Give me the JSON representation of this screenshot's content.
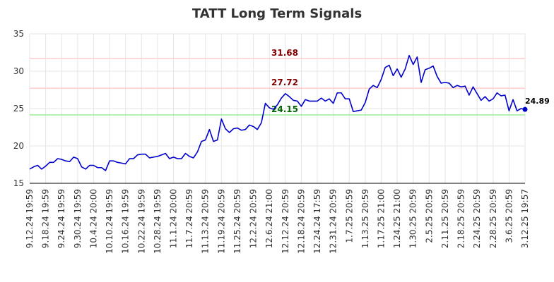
{
  "chart_data": {
    "type": "line",
    "title": "TATT Long Term Signals",
    "xlabel": "",
    "ylabel": "",
    "ylim": [
      15,
      35
    ],
    "y_ticks": [
      15,
      20,
      25,
      30,
      35
    ],
    "grid": true,
    "x_tick_labels": [
      "9.12.24 19:59",
      "9.18.24 19:59",
      "9.24.24 19:59",
      "9.30.24 19:59",
      "10.4.24 20:00",
      "10.10.24 19:59",
      "10.16.24 19:59",
      "10.22.24 19:59",
      "10.28.24 19:59",
      "11.1.24 20:00",
      "11.7.24 20:59",
      "11.13.24 20:59",
      "11.19.24 20:59",
      "11.25.24 20:59",
      "12.2.24 20:59",
      "12.6.24 21:00",
      "12.12.24 20:59",
      "12.18.24 20:59",
      "12.24.24 17:59",
      "12.31.24 20:59",
      "1.7.25 20:59",
      "1.13.25 20:59",
      "1.17.25 21:00",
      "1.24.25 21:00",
      "1.30.25 20:59",
      "2.5.25 20:59",
      "2.11.25 20:59",
      "2.18.25 20:59",
      "2.24.25 20:59",
      "2.28.25 20:59",
      "3.6.25 20:59",
      "3.12.25 19:57"
    ],
    "series": [
      {
        "color": "#0000cc",
        "values": [
          16.9,
          17.2,
          17.4,
          16.9,
          17.3,
          17.8,
          17.8,
          18.3,
          18.2,
          18.0,
          17.9,
          18.5,
          18.3,
          17.2,
          16.9,
          17.4,
          17.4,
          17.1,
          17.1,
          16.7,
          18.0,
          18.0,
          17.8,
          17.7,
          17.6,
          18.3,
          18.3,
          18.8,
          18.9,
          18.9,
          18.4,
          18.5,
          18.6,
          18.8,
          19.0,
          18.3,
          18.5,
          18.3,
          18.3,
          19.0,
          18.6,
          18.4,
          19.2,
          20.6,
          20.8,
          22.2,
          20.6,
          20.8,
          23.6,
          22.3,
          21.8,
          22.3,
          22.4,
          22.1,
          22.2,
          22.8,
          22.6,
          22.2,
          23.1,
          25.7,
          25.1,
          24.9,
          25.5,
          26.4,
          27.0,
          26.6,
          26.1,
          26.0,
          25.3,
          26.2,
          26.0,
          26.0,
          26.0,
          26.4,
          26.0,
          26.3,
          25.7,
          27.1,
          27.1,
          26.3,
          26.3,
          24.6,
          24.7,
          24.8,
          25.8,
          27.6,
          28.1,
          27.8,
          28.9,
          30.5,
          30.8,
          29.4,
          30.3,
          29.2,
          30.3,
          32.1,
          30.9,
          31.9,
          28.5,
          30.2,
          30.4,
          30.7,
          29.3,
          28.4,
          28.5,
          28.4,
          27.8,
          28.1,
          27.9,
          28.0,
          26.8,
          27.9,
          27.0,
          26.1,
          26.6,
          26.0,
          26.3,
          27.1,
          26.7,
          26.8,
          24.7,
          26.2,
          24.7,
          25.0,
          24.89
        ]
      }
    ],
    "levels": [
      {
        "value": 31.68,
        "label": "31.68",
        "line_color": "#ffcccc",
        "label_color": "#800000"
      },
      {
        "value": 27.72,
        "label": "27.72",
        "line_color": "#ffcccc",
        "label_color": "#800000"
      },
      {
        "value": 24.15,
        "label": "24.15",
        "line_color": "#99ee99",
        "label_color": "#006600"
      }
    ],
    "last_value": {
      "value": 24.89,
      "label": "24.89"
    }
  }
}
